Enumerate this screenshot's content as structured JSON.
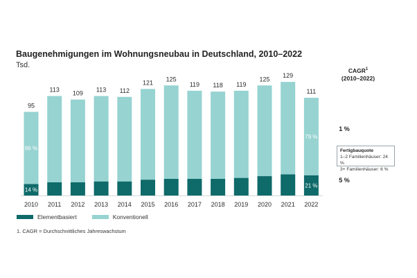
{
  "chart_data": {
    "type": "bar",
    "stacked": true,
    "title": "Baugenehmigungen im Wohnungsneubau in Deutschland, 2010–2022",
    "unit_label": "Tsd.",
    "categories": [
      "2010",
      "2011",
      "2012",
      "2013",
      "2014",
      "2015",
      "2016",
      "2017",
      "2018",
      "2019",
      "2020",
      "2021",
      "2022"
    ],
    "totals": [
      95,
      113,
      109,
      113,
      112,
      121,
      125,
      119,
      118,
      119,
      125,
      129,
      111
    ],
    "total_labels": [
      "95",
      "113",
      "109",
      "113",
      "112",
      "121",
      "125",
      "119",
      "118",
      "119",
      "125",
      "129",
      "111"
    ],
    "series": [
      {
        "name": "Elementbasiert",
        "values": [
          13,
          15,
          15,
          16,
          16,
          18,
          19,
          19,
          19,
          20,
          22,
          24,
          23
        ],
        "color": "#0f6a6a"
      },
      {
        "name": "Konventionell",
        "values": [
          82,
          98,
          94,
          97,
          96,
          103,
          106,
          100,
          99,
          99,
          103,
          105,
          88
        ],
        "color": "#96d3d1"
      }
    ],
    "share_labels": [
      {
        "category": "2010",
        "series": "Elementbasiert",
        "text": "14 %"
      },
      {
        "category": "2010",
        "series": "Konventionell",
        "text": "86 %"
      },
      {
        "category": "2022",
        "series": "Elementbasiert",
        "text": "21 %"
      },
      {
        "category": "2022",
        "series": "Konventionell",
        "text": "79 %"
      }
    ],
    "ylim": [
      0,
      140
    ],
    "xlabel": "",
    "ylabel": "",
    "grid": false,
    "legend_position": "bottom-left"
  },
  "cagr": {
    "heading_main": "CAGR",
    "heading_sup": "1",
    "heading_sub": "(2010–2022)",
    "konventionell": "1 %",
    "elementbasiert": "5 %"
  },
  "callout": {
    "title": "Fertigbauquote",
    "line1": "1–2 Familienhäuser: 24 %",
    "line2": "3+ Familienhäuser: 6 %"
  },
  "legend": {
    "elementbasiert": "Elementbasiert",
    "konventionell": "Konventionell"
  },
  "footnote": "1. CAGR = Durchschnittliches Jahreswachstum"
}
